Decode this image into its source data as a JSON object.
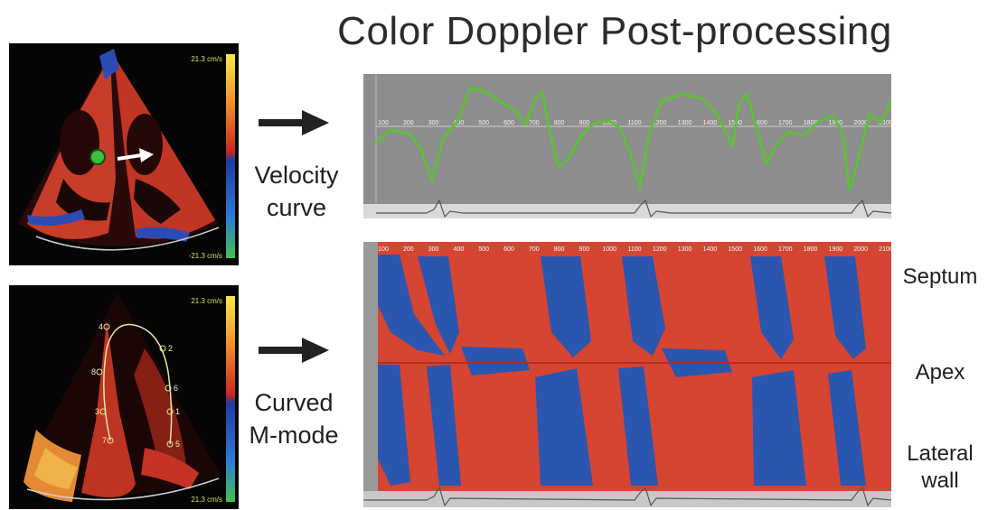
{
  "title": "Color Doppler Post-processing",
  "velocity_caption": [
    "Velocity",
    "curve"
  ],
  "mmode_caption": [
    "Curved",
    "M-mode"
  ],
  "segment_labels": {
    "septum": "Septum",
    "apex": "Apex",
    "lateral": [
      "Lateral",
      "wall"
    ]
  },
  "scale_labels": {
    "top_max": "21.3 cm/s",
    "top_min": "-21.3 cm/s",
    "bottom_max": "21.3 cm/s",
    "bottom_min": "21.3 cm/s"
  },
  "time_ticks": [
    "100",
    "200",
    "300",
    "400",
    "500",
    "600",
    "700",
    "800",
    "900",
    "1000",
    "1100",
    "1200",
    "1300",
    "1400",
    "1500",
    "1600",
    "1700",
    "1800",
    "1900",
    "2000",
    "2100"
  ],
  "contour_markers": [
    "4",
    "8",
    "3",
    "7",
    "2",
    "6",
    "1",
    "5"
  ],
  "colors": {
    "doppler_red": "#d64432",
    "doppler_blue": "#2a56b0",
    "velocity_trace": "#5fbf3a",
    "panel_gray": "#8e8e8e"
  }
}
